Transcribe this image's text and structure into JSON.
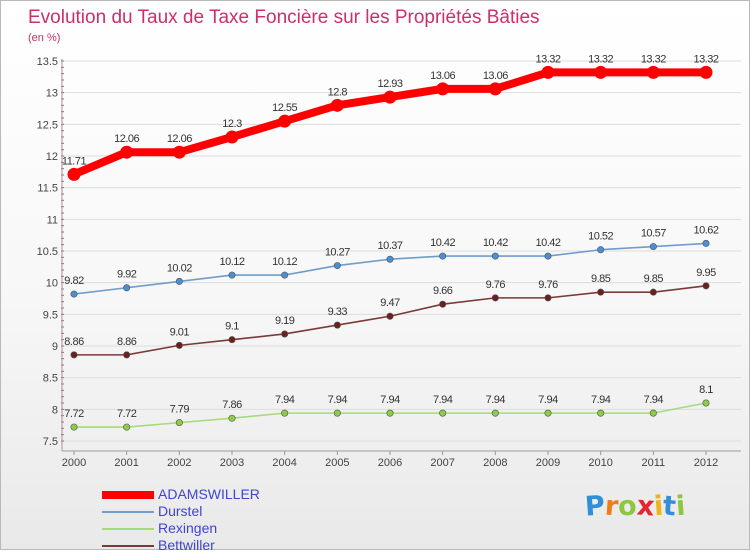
{
  "chart_data": {
    "type": "line",
    "title": "Evolution du Taux de Taxe Foncière sur les Propriétés Bâties",
    "subtitle": "(en %)",
    "x": [
      "2000",
      "2001",
      "2002",
      "2003",
      "2004",
      "2005",
      "2006",
      "2007",
      "2008",
      "2009",
      "2010",
      "2011",
      "2012"
    ],
    "ylim": [
      7.5,
      13.5
    ],
    "yticks": [
      "7.5",
      "8",
      "8.5",
      "9",
      "9.5",
      "10",
      "10.5",
      "11",
      "11.5",
      "12",
      "12.5",
      "13",
      "13.5"
    ],
    "grid": "horizontal",
    "legend_position": "bottom-left",
    "series": [
      {
        "name": "ADAMSWILLER",
        "color": "#ff0000",
        "emphasis": true,
        "values": [
          11.71,
          12.06,
          12.06,
          12.3,
          12.55,
          12.8,
          12.93,
          13.06,
          13.06,
          13.32,
          13.32,
          13.32,
          13.32
        ],
        "labels": [
          "11.71",
          "12.06",
          "12.06",
          "12.3",
          "12.55",
          "12.8",
          "12.93",
          "13.06",
          "13.06",
          "13.32",
          "13.32",
          "13.32",
          "13.32"
        ]
      },
      {
        "name": "Durstel",
        "color": "#6f9ccb",
        "marker": "#4a8fd4",
        "values": [
          9.82,
          9.92,
          10.02,
          10.12,
          10.12,
          10.27,
          10.37,
          10.42,
          10.42,
          10.42,
          10.52,
          10.57,
          10.62
        ],
        "labels": [
          "9.82",
          "9.92",
          "10.02",
          "10.12",
          "10.12",
          "10.27",
          "10.37",
          "10.42",
          "10.42",
          "10.42",
          "10.52",
          "10.57",
          "10.62"
        ]
      },
      {
        "name": "Rexingen",
        "color": "#a6da7c",
        "marker": "#8ccc4a",
        "values": [
          7.72,
          7.72,
          7.79,
          7.86,
          7.94,
          7.94,
          7.94,
          7.94,
          7.94,
          7.94,
          7.94,
          7.94,
          8.1
        ],
        "labels": [
          "7.72",
          "7.72",
          "7.79",
          "7.86",
          "7.94",
          "7.94",
          "7.94",
          "7.94",
          "7.94",
          "7.94",
          "7.94",
          "7.94",
          "8.1"
        ]
      },
      {
        "name": "Bettwiller",
        "color": "#7a3a3a",
        "marker": "#6a2020",
        "values": [
          8.86,
          8.86,
          9.01,
          9.1,
          9.19,
          9.33,
          9.47,
          9.66,
          9.76,
          9.76,
          9.85,
          9.85,
          9.95
        ],
        "labels": [
          "8.86",
          "8.86",
          "9.01",
          "9.1",
          "9.19",
          "9.33",
          "9.47",
          "9.66",
          "9.76",
          "9.76",
          "9.85",
          "9.85",
          "9.95"
        ]
      }
    ]
  },
  "logo": {
    "letters": [
      "P",
      "r",
      "o",
      "x",
      "i",
      "t",
      "i"
    ],
    "colors": [
      "#2f8fd8",
      "#ef7d1a",
      "#8dc63f",
      "#e3262f",
      "#f2b318",
      "#2f8fd8",
      "#8dc63f"
    ]
  }
}
